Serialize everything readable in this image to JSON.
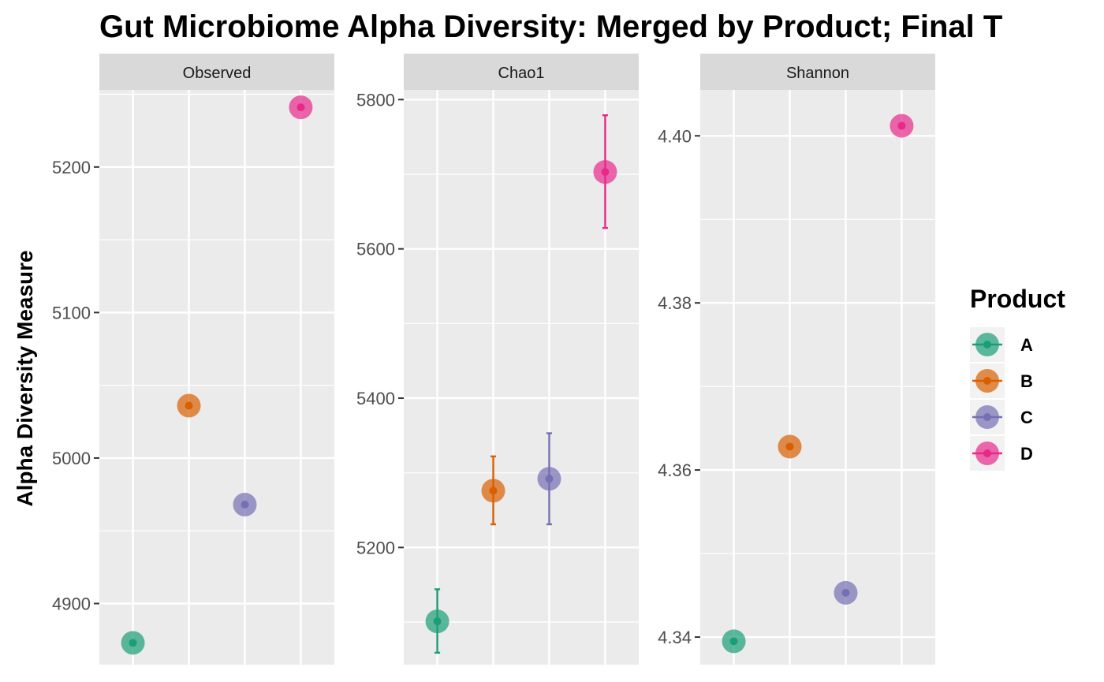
{
  "chart_data": {
    "type": "scatter",
    "title": "Gut Microbiome Alpha Diversity: Merged by Product; Final T",
    "ylabel": "Alpha Diversity Measure",
    "legend": {
      "title": "Product",
      "placement": "right",
      "entries": [
        "A",
        "B",
        "C",
        "D"
      ]
    },
    "categories": [
      "A",
      "B",
      "C",
      "D"
    ],
    "colors": {
      "A": "#1B9E77",
      "B": "#D95F02",
      "C": "#7570B3",
      "D": "#E7298A"
    },
    "grid": true,
    "facets": [
      {
        "name": "Observed",
        "ylim": [
          4858,
          5253
        ],
        "yticks": [
          4900,
          5000,
          5100,
          5200
        ],
        "tick_labels": [
          "4900",
          "5000",
          "5100",
          "5200"
        ],
        "points": [
          {
            "product": "A",
            "y": 4873
          },
          {
            "product": "B",
            "y": 5036
          },
          {
            "product": "C",
            "y": 4968
          },
          {
            "product": "D",
            "y": 5241
          }
        ]
      },
      {
        "name": "Chao1",
        "ylim": [
          5043,
          5813
        ],
        "yticks": [
          5200,
          5400,
          5600,
          5800
        ],
        "tick_labels": [
          "5200",
          "5400",
          "5600",
          "5800"
        ],
        "points": [
          {
            "product": "A",
            "y": 5101,
            "ymin": 5059,
            "ymax": 5144
          },
          {
            "product": "B",
            "y": 5276,
            "ymin": 5231,
            "ymax": 5322
          },
          {
            "product": "C",
            "y": 5292,
            "ymin": 5231,
            "ymax": 5353
          },
          {
            "product": "D",
            "y": 5703,
            "ymin": 5628,
            "ymax": 5779
          }
        ]
      },
      {
        "name": "Shannon",
        "ylim": [
          4.3367,
          4.4055
        ],
        "yticks": [
          4.34,
          4.36,
          4.38,
          4.4
        ],
        "tick_labels": [
          "4.34",
          "4.36",
          "4.38",
          "4.40"
        ],
        "points": [
          {
            "product": "A",
            "y": 4.3395
          },
          {
            "product": "B",
            "y": 4.3628
          },
          {
            "product": "C",
            "y": 4.3453
          },
          {
            "product": "D",
            "y": 4.4012
          }
        ]
      }
    ]
  }
}
